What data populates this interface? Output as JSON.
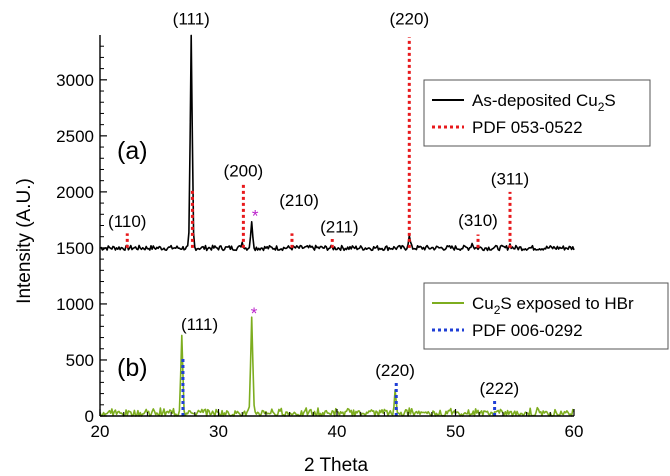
{
  "chart_data": {
    "type": "line",
    "xlabel": "2 Theta",
    "ylabel": "Intensity (A.U.)",
    "xlim": [
      20,
      60
    ],
    "ylim": [
      0,
      3400
    ],
    "xticks": [
      "20",
      "30",
      "40",
      "50",
      "60"
    ],
    "yticks": [
      "0",
      "500",
      "1000",
      "1500",
      "2000",
      "2500",
      "3000"
    ],
    "grid": false,
    "colors": {
      "as_deposited": "#000000",
      "pdf_053_0522": "#e8191c",
      "hbr": "#7dad1f",
      "pdf_006_0292": "#1f3fd6",
      "star": "#bb22cc"
    },
    "panels": [
      {
        "label": "(a)",
        "legend_position": "top-right",
        "series": [
          {
            "name_parts": [
              "As-deposited Cu",
              "2",
              "S"
            ],
            "style": "solid",
            "baseline": 1500,
            "peaks": [
              {
                "x": 27.7,
                "y": 3380
              },
              {
                "x": 32.0,
                "y": 1550
              },
              {
                "x": 32.8,
                "y": 1720
              },
              {
                "x": 46.1,
                "y": 1600
              },
              {
                "x": 51.4,
                "y": 1540
              },
              {
                "x": 54.6,
                "y": 1530
              }
            ]
          },
          {
            "name_parts": [
              "PDF 053-0522"
            ],
            "style": "dotted",
            "sticks": [
              {
                "x": 22.3,
                "y": 1630
              },
              {
                "x": 27.8,
                "y": 2020
              },
              {
                "x": 32.1,
                "y": 2070
              },
              {
                "x": 36.2,
                "y": 1630
              },
              {
                "x": 39.6,
                "y": 1580
              },
              {
                "x": 46.1,
                "y": 3380
              },
              {
                "x": 51.9,
                "y": 1620
              },
              {
                "x": 54.6,
                "y": 2000
              }
            ]
          }
        ],
        "annotations": [
          {
            "text": "(110)",
            "x": 22.3,
            "y": 1650
          },
          {
            "text": "(111)",
            "x": 27.7,
            "y": 3460
          },
          {
            "text": "(200)",
            "x": 32.1,
            "y": 2100
          },
          {
            "text": "(210)",
            "x": 36.8,
            "y": 1840
          },
          {
            "text": "(211)",
            "x": 40.2,
            "y": 1600
          },
          {
            "text": "(220)",
            "x": 46.1,
            "y": 3460
          },
          {
            "text": "(310)",
            "x": 51.9,
            "y": 1660
          },
          {
            "text": "(311)",
            "x": 54.6,
            "y": 2030
          }
        ],
        "stars": [
          {
            "x": 33.1,
            "y": 1720
          }
        ]
      },
      {
        "label": "(b)",
        "legend_position": "right",
        "series": [
          {
            "name_parts": [
              "Cu",
              "2",
              "S exposed to HBr"
            ],
            "style": "solid",
            "baseline": 20,
            "peaks": [
              {
                "x": 26.9,
                "y": 720
              },
              {
                "x": 32.8,
                "y": 850
              },
              {
                "x": 44.9,
                "y": 190
              }
            ]
          },
          {
            "name_parts": [
              "PDF 006-0292"
            ],
            "style": "dotted",
            "sticks": [
              {
                "x": 27.0,
                "y": 510
              },
              {
                "x": 45.0,
                "y": 310
              },
              {
                "x": 53.3,
                "y": 150
              }
            ]
          }
        ],
        "annotations": [
          {
            "text": "(111)",
            "x": 28.4,
            "y": 730
          },
          {
            "text": "(220)",
            "x": 44.9,
            "y": 320
          },
          {
            "text": "(222)",
            "x": 53.7,
            "y": 160
          }
        ],
        "stars": [
          {
            "x": 33.0,
            "y": 850
          }
        ]
      }
    ]
  }
}
